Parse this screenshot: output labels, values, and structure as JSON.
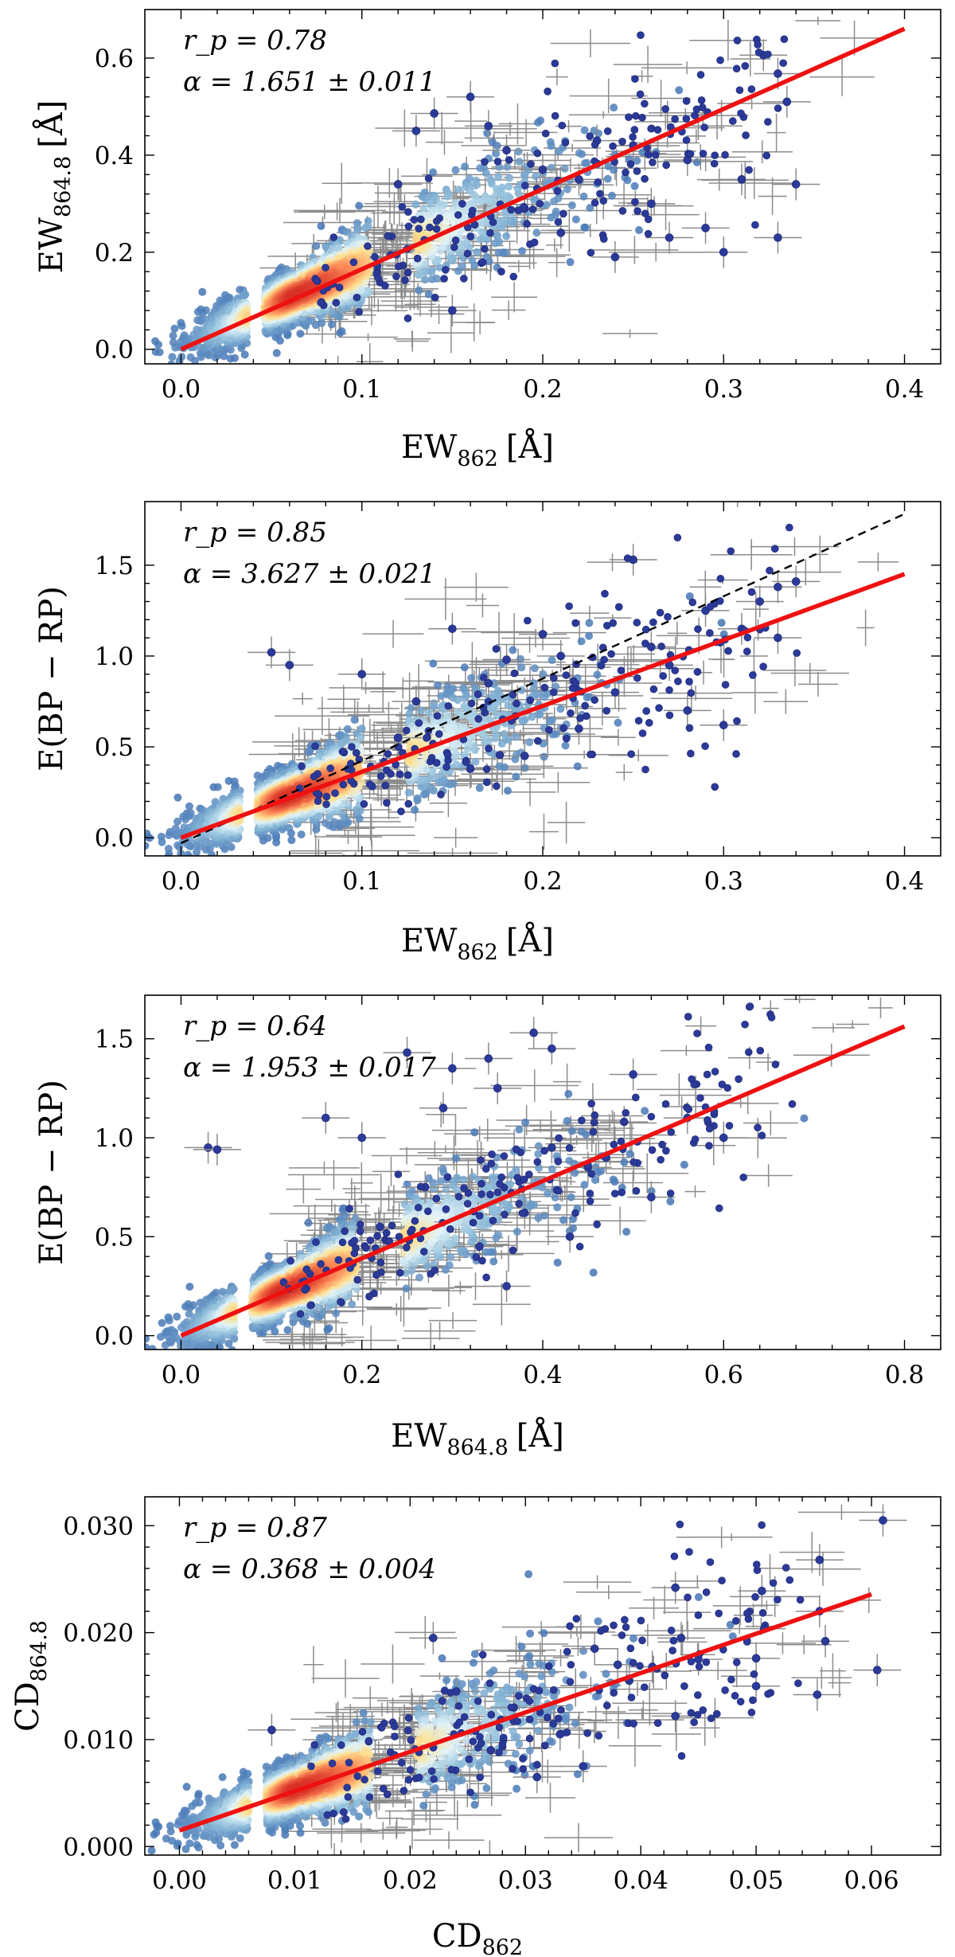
{
  "chart_data": [
    {
      "type": "scatter",
      "xlabel": "EW",
      "xlabel_sub": "862",
      "xlabel_unit": "[Å]",
      "ylabel": "EW",
      "ylabel_sub": "864.8",
      "ylabel_unit": "[Å]",
      "xlim": [
        -0.02,
        0.42
      ],
      "ylim": [
        -0.03,
        0.7
      ],
      "xticks": [
        "0.0",
        "0.1",
        "0.2",
        "0.3",
        "0.4"
      ],
      "yticks": [
        "0.0",
        "0.2",
        "0.4",
        "0.6"
      ],
      "annotation_rp": "r_p = 0.78",
      "annotation_alpha": "α = 1.651 ± 0.011",
      "fit": {
        "slope": 1.651,
        "x0": 0.0,
        "x1": 0.4
      },
      "density_center": [
        0.062,
        0.11
      ],
      "outliers": [
        [
          0.322,
          0.606
        ],
        [
          0.33,
          0.568
        ],
        [
          0.335,
          0.51
        ],
        [
          0.14,
          0.486
        ],
        [
          0.17,
          0.46
        ],
        [
          0.16,
          0.52
        ],
        [
          0.18,
          0.41
        ],
        [
          0.25,
          0.42
        ],
        [
          0.28,
          0.39
        ],
        [
          0.31,
          0.35
        ],
        [
          0.29,
          0.25
        ],
        [
          0.34,
          0.34
        ],
        [
          0.26,
          0.3
        ],
        [
          0.23,
          0.43
        ],
        [
          0.21,
          0.24
        ],
        [
          0.3,
          0.2
        ],
        [
          0.33,
          0.23
        ],
        [
          0.2,
          0.37
        ],
        [
          0.12,
          0.34
        ],
        [
          0.15,
          0.08
        ],
        [
          0.19,
          0.29
        ],
        [
          0.24,
          0.19
        ],
        [
          0.27,
          0.23
        ],
        [
          0.22,
          0.35
        ],
        [
          0.13,
          0.45
        ]
      ]
    },
    {
      "type": "scatter",
      "xlabel": "EW",
      "xlabel_sub": "862",
      "xlabel_unit": "[Å]",
      "ylabel": "E(BP − RP)",
      "ylabel_sub": "",
      "ylabel_unit": "",
      "xlim": [
        -0.02,
        0.42
      ],
      "ylim": [
        -0.1,
        1.85
      ],
      "xticks": [
        "0.0",
        "0.1",
        "0.2",
        "0.3",
        "0.4"
      ],
      "yticks": [
        "0.0",
        "0.5",
        "1.0",
        "1.5"
      ],
      "annotation_rp": "r_p = 0.85",
      "annotation_alpha": "α = 3.627 ± 0.021",
      "fit": {
        "slope": 3.627,
        "x0": 0.0,
        "x1": 0.4
      },
      "reference_line": {
        "slope": 4.53,
        "intercept": -0.03
      },
      "density_center": [
        0.058,
        0.22
      ],
      "outliers": [
        [
          0.25,
          1.53
        ],
        [
          0.33,
          1.38
        ],
        [
          0.34,
          1.41
        ],
        [
          0.32,
          1.3
        ],
        [
          0.31,
          1.15
        ],
        [
          0.29,
          1.25
        ],
        [
          0.33,
          1.1
        ],
        [
          0.2,
          1.12
        ],
        [
          0.27,
          0.95
        ],
        [
          0.05,
          1.02
        ],
        [
          0.06,
          0.95
        ],
        [
          0.15,
          1.15
        ],
        [
          0.24,
          0.8
        ],
        [
          0.28,
          0.7
        ],
        [
          0.22,
          0.6
        ],
        [
          0.1,
          0.9
        ],
        [
          0.13,
          0.75
        ],
        [
          0.17,
          0.85
        ],
        [
          0.19,
          0.45
        ],
        [
          0.26,
          1.05
        ],
        [
          0.12,
          0.55
        ],
        [
          0.16,
          0.38
        ],
        [
          0.3,
          0.62
        ],
        [
          0.21,
          1.0
        ],
        [
          0.18,
          0.98
        ]
      ]
    },
    {
      "type": "scatter",
      "xlabel": "EW",
      "xlabel_sub": "864.8",
      "xlabel_unit": "[Å]",
      "ylabel": "E(BP − RP)",
      "ylabel_sub": "",
      "ylabel_unit": "",
      "xlim": [
        -0.04,
        0.84
      ],
      "ylim": [
        -0.07,
        1.72
      ],
      "xticks": [
        "0.0",
        "0.2",
        "0.4",
        "0.6",
        "0.8"
      ],
      "yticks": [
        "0.0",
        "0.5",
        "1.0",
        "1.5"
      ],
      "annotation_rp": "r_p = 0.64",
      "annotation_alpha": "α = 1.953 ± 0.017",
      "fit": {
        "slope": 1.953,
        "x0": 0.0,
        "x1": 0.8
      },
      "density_center": [
        0.11,
        0.22
      ],
      "outliers": [
        [
          0.39,
          1.53
        ],
        [
          0.41,
          1.45
        ],
        [
          0.34,
          1.4
        ],
        [
          0.25,
          1.43
        ],
        [
          0.5,
          1.32
        ],
        [
          0.56,
          1.1
        ],
        [
          0.6,
          1.0
        ],
        [
          0.49,
          1.08
        ],
        [
          0.03,
          0.95
        ],
        [
          0.04,
          0.94
        ],
        [
          0.35,
          1.25
        ],
        [
          0.3,
          1.35
        ],
        [
          0.45,
          0.85
        ],
        [
          0.52,
          0.7
        ],
        [
          0.38,
          0.62
        ],
        [
          0.2,
          1.0
        ],
        [
          0.27,
          0.75
        ],
        [
          0.33,
          0.45
        ],
        [
          0.43,
          0.5
        ],
        [
          0.16,
          1.1
        ],
        [
          0.22,
          0.55
        ],
        [
          0.36,
          0.25
        ],
        [
          0.47,
          0.9
        ],
        [
          0.29,
          1.15
        ],
        [
          0.41,
          0.95
        ]
      ]
    },
    {
      "type": "scatter",
      "xlabel": "CD",
      "xlabel_sub": "862",
      "xlabel_unit": "",
      "ylabel": "CD",
      "ylabel_sub": "864.8",
      "ylabel_unit": "",
      "xlim": [
        -0.003,
        0.066
      ],
      "ylim": [
        -0.0008,
        0.0327
      ],
      "xticks": [
        "0.00",
        "0.01",
        "0.02",
        "0.03",
        "0.04",
        "0.05",
        "0.06"
      ],
      "yticks": [
        "0.000",
        "0.010",
        "0.020",
        "0.030"
      ],
      "annotation_rp": "r_p = 0.87",
      "annotation_alpha": "α = 0.368 ± 0.004",
      "fit": {
        "slope": 0.368,
        "intercept": 0.0015,
        "x0": 0.0,
        "x1": 0.06
      },
      "density_center": [
        0.01,
        0.0053
      ],
      "outliers": [
        [
          0.061,
          0.0305
        ],
        [
          0.0555,
          0.0268
        ],
        [
          0.0555,
          0.022
        ],
        [
          0.056,
          0.0192
        ],
        [
          0.0553,
          0.0142
        ],
        [
          0.0605,
          0.0165
        ],
        [
          0.0505,
          0.0239
        ],
        [
          0.05,
          0.0176
        ],
        [
          0.05,
          0.015
        ],
        [
          0.043,
          0.0242
        ],
        [
          0.0435,
          0.0195
        ],
        [
          0.043,
          0.0122
        ],
        [
          0.038,
          0.017
        ],
        [
          0.041,
          0.0168
        ],
        [
          0.033,
          0.0105
        ],
        [
          0.031,
          0.0065
        ],
        [
          0.022,
          0.0195
        ],
        [
          0.008,
          0.0109
        ],
        [
          0.035,
          0.0075
        ],
        [
          0.027,
          0.009
        ],
        [
          0.039,
          0.0155
        ],
        [
          0.045,
          0.0175
        ],
        [
          0.029,
          0.013
        ],
        [
          0.036,
          0.0185
        ],
        [
          0.024,
          0.0145
        ]
      ]
    }
  ],
  "colors": {
    "points": "#2b3a98",
    "errorbars": "#8c8c8c",
    "fit": "#ee1111",
    "reference": "#000000"
  }
}
